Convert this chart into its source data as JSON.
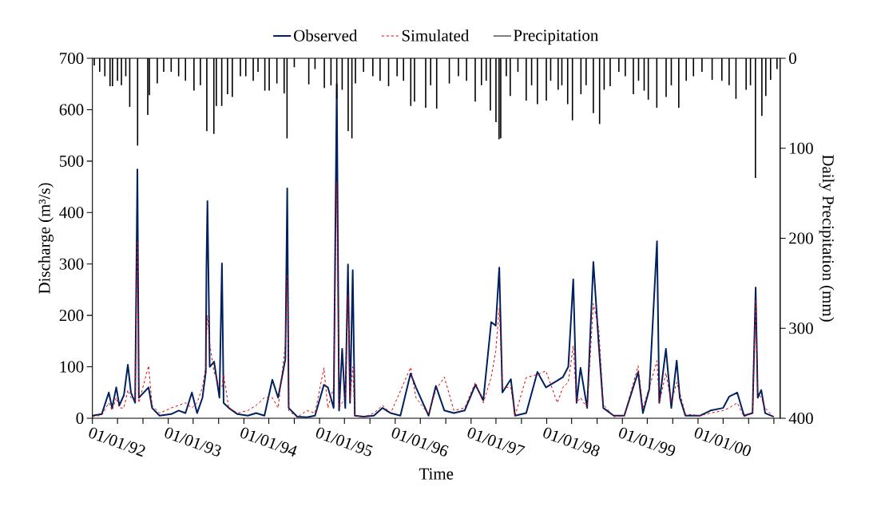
{
  "chart_data": {
    "type": "line",
    "xlabel": "Time",
    "ylabel": "Discharge (m³/s)",
    "y2label": "Daily Precipitation (mm)",
    "xlim": [
      "1992-01-01",
      "2001-01-31"
    ],
    "ylim": [
      0,
      700
    ],
    "y2lim": [
      400,
      0
    ],
    "yticks": [
      0,
      100,
      200,
      300,
      400,
      500,
      600,
      700
    ],
    "y2ticks": [
      0,
      100,
      200,
      300,
      400
    ],
    "xticks": [
      {
        "value": "1992-01-01",
        "label": "01/01/92"
      },
      {
        "value": "1992-05-01",
        "label": null
      },
      {
        "value": "1992-09-01",
        "label": null
      },
      {
        "value": "1993-01-01",
        "label": "01/01/93"
      },
      {
        "value": "1993-05-01",
        "label": null
      },
      {
        "value": "1993-09-01",
        "label": null
      },
      {
        "value": "1994-01-01",
        "label": "01/01/94"
      },
      {
        "value": "1994-05-01",
        "label": null
      },
      {
        "value": "1994-09-01",
        "label": null
      },
      {
        "value": "1995-01-01",
        "label": "01/01/95"
      },
      {
        "value": "1995-05-01",
        "label": null
      },
      {
        "value": "1995-09-01",
        "label": null
      },
      {
        "value": "1996-01-01",
        "label": "01/01/96"
      },
      {
        "value": "1996-05-01",
        "label": null
      },
      {
        "value": "1996-09-01",
        "label": null
      },
      {
        "value": "1997-01-01",
        "label": "01/01/97"
      },
      {
        "value": "1997-05-01",
        "label": null
      },
      {
        "value": "1997-09-01",
        "label": null
      },
      {
        "value": "1998-01-01",
        "label": "01/01/98"
      },
      {
        "value": "1998-05-01",
        "label": null
      },
      {
        "value": "1998-09-01",
        "label": null
      },
      {
        "value": "1999-01-01",
        "label": "01/01/99"
      },
      {
        "value": "1999-05-01",
        "label": null
      },
      {
        "value": "1999-09-01",
        "label": null
      },
      {
        "value": "2000-01-01",
        "label": "01/01/00"
      },
      {
        "value": "2000-05-01",
        "label": null
      },
      {
        "value": "2000-09-01",
        "label": null
      },
      {
        "value": "2001-01-01",
        "label": null
      }
    ],
    "legend": "top",
    "x": [
      "1992-01-01",
      "1992-02-15",
      "1992-03-20",
      "1992-04-05",
      "1992-04-25",
      "1992-05-10",
      "1992-06-01",
      "1992-06-20",
      "1992-07-05",
      "1992-07-25",
      "1992-08-05",
      "1992-08-12",
      "1992-09-28",
      "1992-10-15",
      "1992-11-20",
      "1993-01-15",
      "1993-02-20",
      "1993-03-25",
      "1993-04-25",
      "1993-05-20",
      "1993-06-15",
      "1993-07-01",
      "1993-07-04",
      "1993-07-09",
      "1993-07-20",
      "1993-08-10",
      "1993-09-05",
      "1993-09-17",
      "1993-09-25",
      "1993-10-20",
      "1993-12-01",
      "1994-01-20",
      "1994-03-01",
      "1994-04-10",
      "1994-05-18",
      "1994-06-15",
      "1994-07-20",
      "1994-07-29",
      "1994-08-05",
      "1994-09-15",
      "1994-11-01",
      "1994-12-10",
      "1995-01-22",
      "1995-02-10",
      "1995-03-10",
      "1995-03-25",
      "1995-04-05",
      "1995-04-20",
      "1995-05-05",
      "1995-05-18",
      "1995-05-28",
      "1995-06-10",
      "1995-06-20",
      "1995-08-01",
      "1995-09-20",
      "1995-11-01",
      "1995-12-10",
      "1996-01-26",
      "1996-03-15",
      "1996-04-10",
      "1996-06-10",
      "1996-07-15",
      "1996-08-25",
      "1996-10-10",
      "1996-12-01",
      "1997-01-22",
      "1997-03-01",
      "1997-04-08",
      "1997-04-30",
      "1997-05-17",
      "1997-06-01",
      "1997-07-12",
      "1997-08-01",
      "1997-09-24",
      "1997-11-17",
      "1997-12-28",
      "1998-02-21",
      "1998-03-20",
      "1998-04-15",
      "1998-05-09",
      "1998-05-25",
      "1998-06-13",
      "1998-07-15",
      "1998-08-14",
      "1998-09-09",
      "1998-10-01",
      "1998-11-20",
      "1999-01-10",
      "1999-03-18",
      "1999-04-10",
      "1999-05-11",
      "1999-06-17",
      "1999-06-28",
      "1999-07-30",
      "1999-08-25",
      "1999-09-20",
      "1999-10-05",
      "1999-11-01",
      "2000-01-10",
      "2000-03-01",
      "2000-05-01",
      "2000-05-30",
      "2000-07-08",
      "2000-08-10",
      "2000-09-20",
      "2000-10-05",
      "2000-10-15",
      "2000-11-01",
      "2000-11-20",
      "2000-12-31"
    ],
    "series": [
      {
        "name": "Observed",
        "color": "#002060",
        "line_style": "solid",
        "values": [
          5,
          8,
          50,
          20,
          60,
          25,
          45,
          104,
          50,
          30,
          484,
          40,
          60,
          20,
          5,
          8,
          15,
          10,
          50,
          10,
          40,
          90,
          287,
          422,
          100,
          110,
          40,
          301,
          30,
          20,
          8,
          5,
          10,
          5,
          75,
          40,
          115,
          447,
          20,
          3,
          2,
          5,
          65,
          60,
          20,
          650,
          15,
          135,
          20,
          299,
          30,
          288,
          5,
          3,
          5,
          20,
          10,
          5,
          87,
          60,
          5,
          63,
          15,
          10,
          15,
          65,
          35,
          187,
          180,
          293,
          50,
          76,
          5,
          10,
          90,
          60,
          73,
          80,
          100,
          270,
          30,
          98,
          20,
          304,
          143,
          20,
          5,
          5,
          90,
          10,
          57,
          344,
          30,
          135,
          20,
          112,
          40,
          5,
          5,
          15,
          20,
          42,
          50,
          5,
          10,
          254,
          40,
          55,
          10,
          3
        ]
      },
      {
        "name": "Simulated",
        "color": "#e00000",
        "line_style": "dashed",
        "values": [
          3,
          6,
          30,
          15,
          40,
          20,
          20,
          55,
          40,
          35,
          345,
          30,
          102,
          25,
          10,
          20,
          25,
          30,
          20,
          30,
          60,
          100,
          150,
          200,
          145,
          90,
          60,
          60,
          85,
          20,
          10,
          15,
          25,
          40,
          40,
          20,
          145,
          280,
          15,
          2,
          15,
          10,
          98,
          20,
          60,
          460,
          20,
          30,
          40,
          240,
          35,
          100,
          5,
          2,
          10,
          25,
          10,
          53,
          99,
          40,
          8,
          55,
          80,
          15,
          20,
          70,
          30,
          80,
          130,
          215,
          60,
          60,
          5,
          79,
          85,
          92,
          30,
          60,
          70,
          141,
          30,
          40,
          20,
          223,
          174,
          27,
          3,
          5,
          102,
          20,
          60,
          112,
          30,
          88,
          30,
          70,
          50,
          8,
          5,
          10,
          15,
          20,
          30,
          3,
          10,
          231,
          50,
          40,
          20,
          2
        ]
      },
      {
        "name": "Precipitation",
        "type": "bar",
        "axis": "y2",
        "color": "#000000",
        "x": [
          "1992-01-10",
          "1992-02-05",
          "1992-03-01",
          "1992-03-26",
          "1992-04-07",
          "1992-05-01",
          "1992-05-20",
          "1992-06-10",
          "1992-06-29",
          "1992-08-06",
          "1992-09-24",
          "1992-10-02",
          "1992-11-09",
          "1992-12-10",
          "1993-01-15",
          "1993-02-20",
          "1993-03-25",
          "1993-05-05",
          "1993-06-05",
          "1993-07-06",
          "1993-08-09",
          "1993-08-21",
          "1993-09-16",
          "1993-10-14",
          "1993-11-06",
          "1993-12-15",
          "1994-01-10",
          "1994-02-15",
          "1994-03-10",
          "1994-04-12",
          "1994-05-03",
          "1994-06-09",
          "1994-07-14",
          "1994-07-28",
          "1994-09-01",
          "1994-11-10",
          "1994-12-10",
          "1995-01-24",
          "1995-02-25",
          "1995-03-25",
          "1995-04-20",
          "1995-05-19",
          "1995-06-06",
          "1995-06-23",
          "1995-08-01",
          "1995-09-15",
          "1995-10-20",
          "1995-11-30",
          "1996-01-10",
          "1996-02-10",
          "1996-03-16",
          "1996-04-03",
          "1996-05-27",
          "1996-06-20",
          "1996-07-19",
          "1996-09-18",
          "1996-11-01",
          "1996-12-10",
          "1997-01-21",
          "1997-02-20",
          "1997-03-15",
          "1997-04-04",
          "1997-05-01",
          "1997-05-16",
          "1997-05-24",
          "1997-06-20",
          "1997-07-09",
          "1997-08-15",
          "1997-09-24",
          "1997-10-20",
          "1997-11-17",
          "1997-12-30",
          "1998-01-20",
          "1998-02-25",
          "1998-03-15",
          "1998-04-12",
          "1998-05-05",
          "1998-06-15",
          "1998-07-10",
          "1998-08-14",
          "1998-09-13",
          "1998-10-05",
          "1998-11-03",
          "1998-12-15",
          "1999-01-15",
          "1999-02-23",
          "1999-03-20",
          "1999-04-16",
          "1999-05-06",
          "1999-06-16",
          "1999-07-31",
          "1999-08-25",
          "1999-09-30",
          "1999-11-05",
          "1999-12-10",
          "2000-01-20",
          "2000-03-09",
          "2000-04-25",
          "2000-05-30",
          "2000-07-02",
          "2000-08-20",
          "2000-09-10",
          "2000-10-04",
          "2000-11-04",
          "2000-11-23",
          "2000-12-16",
          "2001-01-16"
        ],
        "values": [
          8,
          15,
          20,
          31,
          31,
          25,
          30,
          20,
          54,
          97,
          63,
          41,
          28,
          15,
          15,
          20,
          25,
          36,
          30,
          81,
          84,
          53,
          53,
          40,
          43,
          20,
          20,
          25,
          15,
          36,
          36,
          28,
          39,
          89,
          10,
          29,
          12,
          33,
          30,
          45,
          35,
          81,
          89,
          28,
          15,
          20,
          25,
          31,
          20,
          25,
          53,
          48,
          55,
          30,
          56,
          28,
          20,
          25,
          48,
          30,
          25,
          58,
          71,
          90,
          89,
          20,
          42,
          15,
          47,
          30,
          51,
          47,
          25,
          35,
          30,
          51,
          69,
          40,
          30,
          61,
          73,
          35,
          31,
          15,
          20,
          40,
          25,
          36,
          46,
          55,
          43,
          30,
          55,
          25,
          20,
          15,
          24,
          25,
          30,
          45,
          35,
          30,
          133,
          64,
          42,
          24,
          12
        ]
      }
    ]
  }
}
